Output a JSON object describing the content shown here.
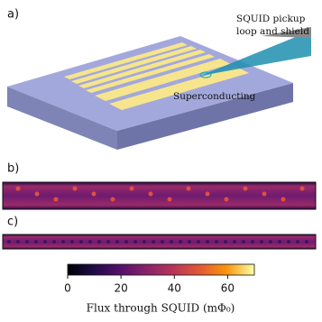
{
  "panels": {
    "a": "a)",
    "b": "b)",
    "c": "c)"
  },
  "annotations": {
    "probe": [
      "SQUID pickup",
      "loop and shield"
    ],
    "sample": "Superconducting"
  },
  "chart_data": {
    "type": "colorbar",
    "colormap": "inferno",
    "xlim": [
      0,
      70
    ],
    "xticks": [
      0,
      20,
      40,
      60
    ],
    "xlabel": "Flux through SQUID (mΦ₀)"
  }
}
